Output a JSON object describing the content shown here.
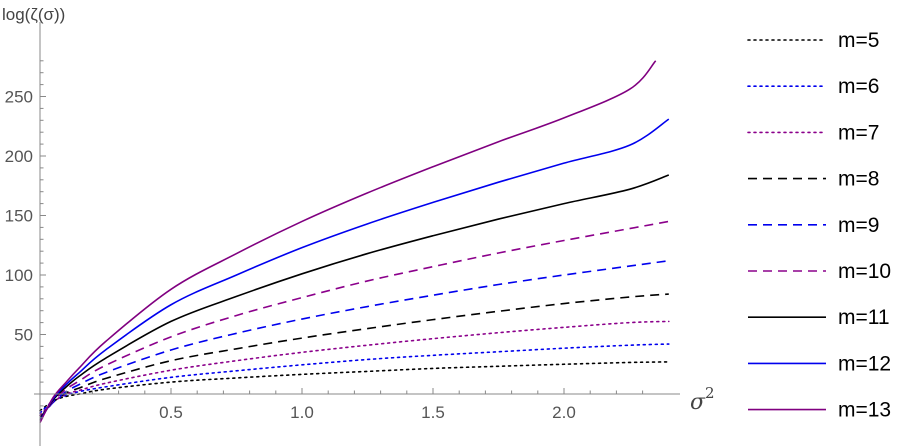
{
  "chart_data": {
    "type": "line",
    "xlabel": "σ2",
    "xlabel_base": "σ",
    "xlabel_sup": "2",
    "ylabel": "log(ζ(σ))",
    "xlim": [
      0.0,
      2.4
    ],
    "ylim": [
      -25,
      290
    ],
    "xticks": [
      0.5,
      1.0,
      1.5,
      2.0
    ],
    "xtick_labels": [
      "0.5",
      "1.0",
      "1.5",
      "2.0"
    ],
    "yticks": [
      50,
      100,
      150,
      200,
      250
    ],
    "ytick_labels": [
      "50",
      "100",
      "150",
      "200",
      "250"
    ],
    "grid": false,
    "legend_position": "right",
    "legend_columns": 1,
    "series": [
      {
        "name": "m=5",
        "color": "#000000",
        "style": "dotted",
        "x": [
          0.0,
          0.05,
          0.1,
          0.15,
          0.25,
          0.5,
          0.75,
          1.0,
          1.25,
          1.5,
          1.75,
          2.0,
          2.25,
          2.4
        ],
        "y": [
          -14,
          -6,
          -2,
          0,
          4,
          10,
          13.5,
          16.5,
          19,
          21.5,
          23.3,
          25,
          26.5,
          27
        ]
      },
      {
        "name": "m=6",
        "color": "#0000ee",
        "style": "dotted",
        "x": [
          0.0,
          0.05,
          0.1,
          0.15,
          0.25,
          0.5,
          0.75,
          1.0,
          1.25,
          1.5,
          1.75,
          2.0,
          2.25,
          2.4
        ],
        "y": [
          -16,
          -6,
          -1,
          2,
          6,
          14,
          19.5,
          24.5,
          29,
          32.5,
          35.5,
          38.5,
          41,
          42
        ]
      },
      {
        "name": "m=7",
        "color": "#8b008b",
        "style": "dotted",
        "x": [
          0.0,
          0.05,
          0.1,
          0.15,
          0.25,
          0.5,
          0.75,
          1.0,
          1.25,
          1.5,
          1.75,
          2.0,
          2.25,
          2.4
        ],
        "y": [
          -18,
          -7,
          0,
          3,
          9,
          20,
          28,
          35,
          41,
          46.5,
          51.5,
          56,
          60,
          61
        ]
      },
      {
        "name": "m=8",
        "color": "#000000",
        "style": "dashed",
        "x": [
          0.0,
          0.05,
          0.1,
          0.15,
          0.25,
          0.5,
          0.75,
          1.0,
          1.25,
          1.5,
          1.75,
          2.0,
          2.25,
          2.4
        ],
        "y": [
          -20,
          -7,
          1,
          5,
          13,
          28,
          38,
          47,
          55,
          62.5,
          69.5,
          76,
          81.5,
          84
        ]
      },
      {
        "name": "m=9",
        "color": "#0000ee",
        "style": "dashed",
        "x": [
          0.0,
          0.05,
          0.1,
          0.15,
          0.25,
          0.5,
          0.75,
          1.0,
          1.25,
          1.5,
          1.75,
          2.0,
          2.25,
          2.4
        ],
        "y": [
          -21,
          -7,
          2,
          8,
          18,
          37,
          51,
          63,
          73.5,
          83,
          92,
          100,
          107.5,
          112
        ]
      },
      {
        "name": "m=10",
        "color": "#8b008b",
        "style": "dashed",
        "x": [
          0.0,
          0.05,
          0.1,
          0.15,
          0.25,
          0.5,
          0.75,
          1.0,
          1.25,
          1.5,
          1.75,
          2.0,
          2.25,
          2.4
        ],
        "y": [
          -22,
          -6,
          4,
          11,
          24,
          48,
          66,
          81,
          95,
          107,
          118.5,
          129,
          139,
          145
        ]
      },
      {
        "name": "m=11",
        "color": "#000000",
        "style": "solid",
        "x": [
          0.0,
          0.05,
          0.1,
          0.15,
          0.25,
          0.5,
          0.75,
          1.0,
          1.25,
          1.5,
          1.75,
          2.0,
          2.25,
          2.4
        ],
        "y": [
          -22,
          -5,
          6,
          15,
          30,
          61,
          82,
          101,
          118,
          133,
          147,
          160,
          172,
          184
        ]
      },
      {
        "name": "m=12",
        "color": "#0000ee",
        "style": "solid",
        "x": [
          0.0,
          0.05,
          0.1,
          0.15,
          0.25,
          0.5,
          0.75,
          1.0,
          1.25,
          1.5,
          1.75,
          2.0,
          2.25,
          2.4
        ],
        "y": [
          -23,
          -4,
          8,
          18,
          37,
          75,
          100,
          123,
          143,
          161,
          178,
          194,
          209,
          231
        ]
      },
      {
        "name": "m=13",
        "color": "#800080",
        "style": "solid",
        "x": [
          0.0,
          0.05,
          0.1,
          0.15,
          0.25,
          0.5,
          0.75,
          1.0,
          1.25,
          1.5,
          1.75,
          2.0,
          2.25,
          2.35
        ],
        "y": [
          -24,
          -3,
          10,
          22,
          44,
          88,
          118,
          145,
          169,
          191,
          212,
          232,
          256,
          280
        ]
      }
    ]
  }
}
